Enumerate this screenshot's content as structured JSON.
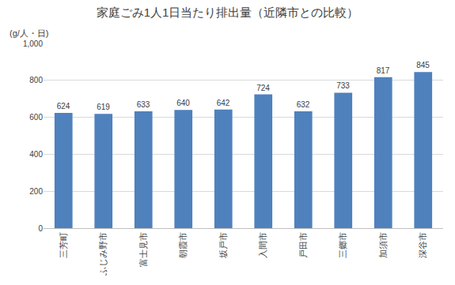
{
  "chart_data": {
    "type": "bar",
    "title": "家庭ごみ1人1日当たり排出量（近隣市との比較）",
    "ylabel": "(g/人・日)",
    "categories": [
      "三芳町",
      "ふじみ野市",
      "富士見市",
      "朝霞市",
      "坂戸市",
      "入間市",
      "戸田市",
      "三郷市",
      "加須市",
      "深谷市"
    ],
    "values": [
      624,
      619,
      633,
      640,
      642,
      724,
      632,
      733,
      817,
      845
    ],
    "color": "#4f81bd",
    "ylim": [
      0,
      1000
    ],
    "yticks": [
      0,
      200,
      400,
      600,
      800,
      {
        "value": 1000,
        "label": "1,000"
      }
    ],
    "grid": true,
    "data_labels": true
  }
}
